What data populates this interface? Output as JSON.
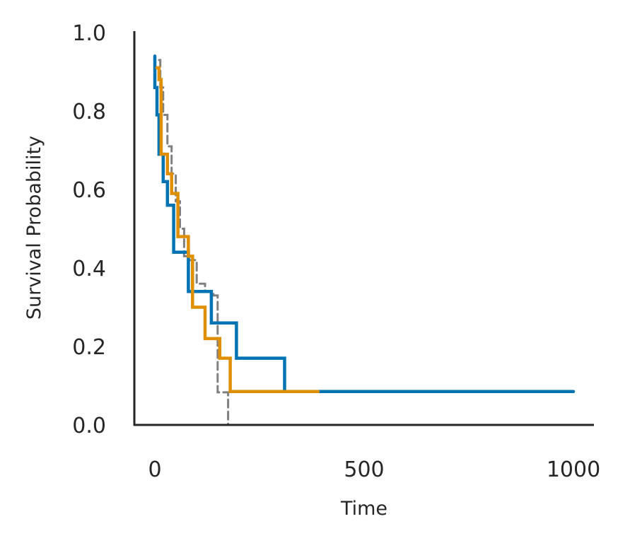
{
  "chart_data": {
    "type": "line",
    "title": "",
    "xlabel": "Time",
    "ylabel": "Survival Probability",
    "xlim": [
      -50,
      1050
    ],
    "ylim": [
      0,
      1.0
    ],
    "xticks": [
      0,
      500,
      1000
    ],
    "xtick_labels": [
      "0",
      "500",
      "1000"
    ],
    "yticks": [
      0,
      0.2,
      0.4,
      0.6,
      0.8,
      1.0
    ],
    "ytick_labels": [
      "0.0",
      "0.2",
      "0.4",
      "0.6",
      "0.8",
      "1.0"
    ],
    "grid": false,
    "legend": null,
    "series": [
      {
        "color": "#808080",
        "linestyle": "dashed",
        "x": [
          10,
          13,
          13,
          20,
          20,
          30,
          30,
          40,
          40,
          50,
          50,
          60,
          60,
          70,
          70,
          80,
          80,
          100,
          100,
          120,
          120,
          140,
          140,
          150,
          150,
          175,
          175,
          400
        ],
        "y": [
          0.93,
          0.93,
          0.86,
          0.86,
          0.79,
          0.79,
          0.71,
          0.71,
          0.64,
          0.64,
          0.57,
          0.57,
          0.5,
          0.5,
          0.43,
          0.43,
          0.42,
          0.42,
          0.36,
          0.36,
          0.34,
          0.34,
          0.33,
          0.33,
          0.083,
          0.083,
          0.0,
          0.0
        ]
      },
      {
        "color": "#0173b2",
        "linestyle": "solid",
        "x": [
          0,
          0,
          5,
          5,
          10,
          10,
          20,
          20,
          30,
          30,
          45,
          45,
          55,
          55,
          80,
          80,
          95,
          95,
          135,
          135,
          195,
          195,
          310,
          310,
          1000
        ],
        "y": [
          0.94,
          0.86,
          0.86,
          0.79,
          0.79,
          0.69,
          0.69,
          0.62,
          0.62,
          0.56,
          0.56,
          0.44,
          0.44,
          0.44,
          0.44,
          0.34,
          0.34,
          0.34,
          0.34,
          0.26,
          0.26,
          0.17,
          0.17,
          0.085,
          0.085
        ]
      },
      {
        "color": "#de8f05",
        "linestyle": "solid",
        "x": [
          5,
          5,
          10,
          10,
          15,
          15,
          30,
          30,
          40,
          40,
          55,
          55,
          65,
          65,
          80,
          80,
          90,
          90,
          120,
          120,
          155,
          155,
          170,
          170,
          180,
          180,
          390
        ],
        "y": [
          0.91,
          0.91,
          0.91,
          0.88,
          0.88,
          0.69,
          0.69,
          0.64,
          0.64,
          0.59,
          0.59,
          0.48,
          0.48,
          0.48,
          0.48,
          0.43,
          0.43,
          0.3,
          0.3,
          0.22,
          0.22,
          0.17,
          0.17,
          0.17,
          0.17,
          0.085,
          0.085
        ]
      }
    ]
  }
}
